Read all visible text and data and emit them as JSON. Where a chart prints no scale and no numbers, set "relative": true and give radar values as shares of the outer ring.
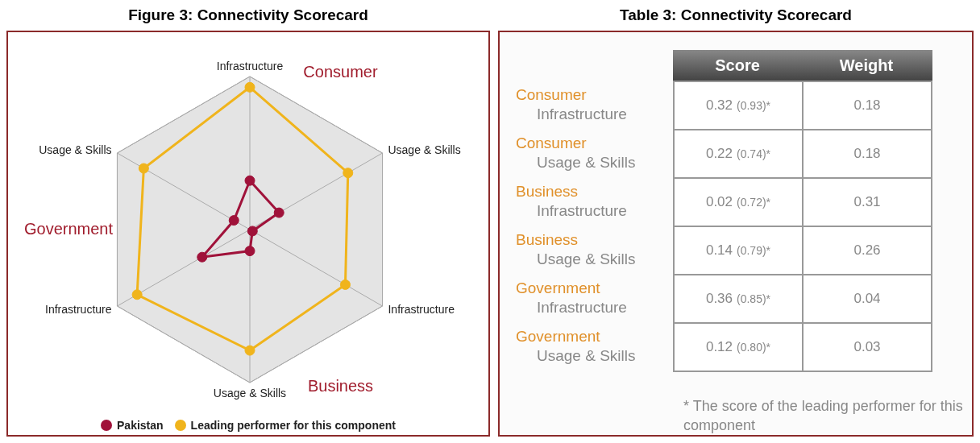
{
  "chart_data": [
    {
      "type": "radar",
      "title": "Figure 3: Connectivity Scorecard",
      "categories": [
        "Infrastructure",
        "Usage & Skills",
        "Infrastructure",
        "Usage & Skills",
        "Infrastructure",
        "Usage & Skills"
      ],
      "series": [
        {
          "name": "Pakistan",
          "color": "#a0123a",
          "values": [
            0.32,
            0.22,
            0.02,
            0.14,
            0.36,
            0.12
          ]
        },
        {
          "name": "Leading performer for this component",
          "color": "#f0b41c",
          "values": [
            0.93,
            0.74,
            0.72,
            0.79,
            0.85,
            0.8
          ]
        }
      ],
      "relative": true,
      "annotations": [
        "Consumer",
        "Business",
        "Government"
      ],
      "legend": "bottom",
      "marker": "circle",
      "grid": true
    },
    {
      "type": "other",
      "title": "Table 3: Connectivity Scorecard",
      "data_labels": true,
      "categories": [
        "Consumer\nInfrastructure",
        "Consumer\nUsage & Skills",
        "Business\nInfrastructure",
        "Business\nUsage & Skills",
        "Government\nInfrastructure",
        "Government\nUsage & Skills"
      ],
      "series": [
        {
          "name": "Score",
          "values": [
            0.32,
            0.22,
            0.02,
            0.14,
            0.36,
            0.12
          ]
        },
        {
          "values": [
            0.93,
            0.74,
            0.72,
            0.79,
            0.85,
            0.8
          ],
          "value_labels": [
            "(0.93)*",
            "(0.74)*",
            "(0.72)*",
            "(0.79)*",
            "(0.85)*",
            "(0.80)*"
          ]
        },
        {
          "name": "Weight",
          "values": [
            0.18,
            0.18,
            0.31,
            0.26,
            0.04,
            0.03
          ]
        }
      ],
      "annotations": [
        "* The score of the leading performer for this component"
      ]
    }
  ]
}
